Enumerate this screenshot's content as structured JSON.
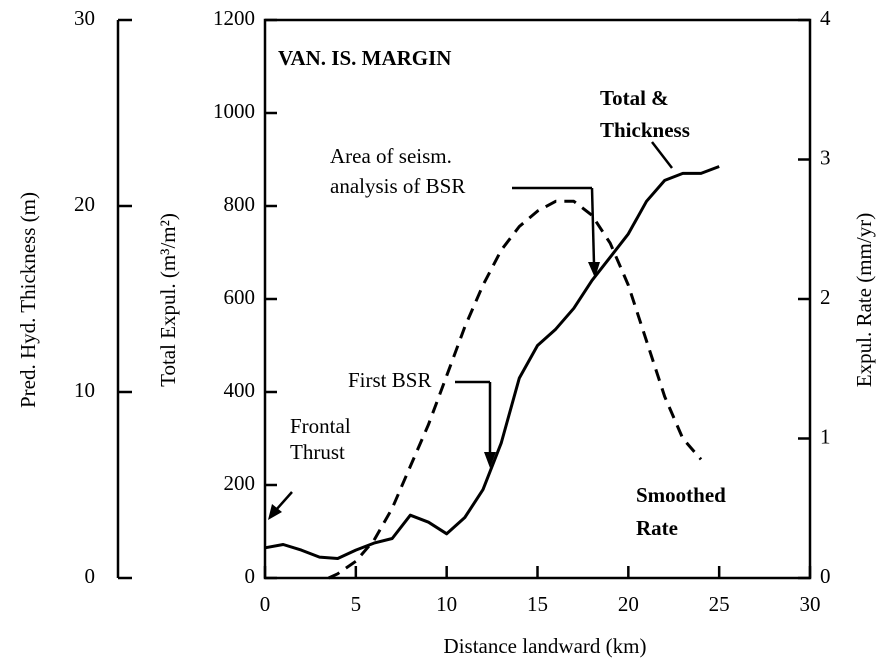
{
  "chart_data": {
    "type": "line",
    "xlabel": "Distance landward (km)",
    "ylabel": "Total Expul. (m³/m²)",
    "y2label": "Expul. Rate (mm/yr)",
    "xlim": [
      0,
      30
    ],
    "xticks": [
      0,
      5,
      10,
      15,
      20,
      25,
      30
    ],
    "ylim": [
      0,
      1200
    ],
    "yticks": [
      0,
      200,
      400,
      600,
      800,
      1000,
      1200
    ],
    "y2lim": [
      0,
      4
    ],
    "y2ticks": [
      0,
      1,
      2,
      3,
      4
    ],
    "left_axis": {
      "label": "Pred. Hyd. Thickness (m)",
      "lim": [
        0,
        30
      ],
      "ticks": [
        0,
        10,
        20,
        30
      ]
    },
    "series": [
      {
        "name": "Total & Thickness",
        "color": "#000000",
        "dash": "none",
        "x": [
          0,
          1,
          2,
          3,
          4,
          5,
          6,
          7,
          8,
          9,
          10,
          11,
          12,
          13,
          14,
          15,
          16,
          17,
          18,
          19,
          20,
          21,
          22,
          23,
          24,
          25
        ],
        "values": [
          65,
          72,
          60,
          45,
          42,
          60,
          75,
          85,
          135,
          120,
          95,
          130,
          190,
          290,
          430,
          500,
          535,
          580,
          640,
          690,
          740,
          810,
          855,
          870,
          870,
          885
        ]
      },
      {
        "name": "Smoothed Rate",
        "color": "#000000",
        "dash": "12 8",
        "axis": "y2",
        "x": [
          3.5,
          4,
          5,
          6,
          7,
          8,
          9,
          10,
          11,
          12,
          13,
          14,
          15,
          16,
          17,
          18,
          19,
          20,
          21,
          22,
          23,
          24
        ],
        "values": [
          0,
          0.03,
          0.12,
          0.27,
          0.5,
          0.8,
          1.1,
          1.45,
          1.8,
          2.1,
          2.35,
          2.52,
          2.63,
          2.7,
          2.7,
          2.6,
          2.4,
          2.1,
          1.7,
          1.3,
          1.0,
          0.85
        ]
      }
    ],
    "annotations": [
      {
        "text": [
          "VAN. IS. MARGIN"
        ]
      },
      {
        "text": [
          "Total &",
          "Thickness"
        ]
      },
      {
        "text": [
          "Area of seism.",
          "analysis of BSR"
        ]
      },
      {
        "text": [
          "First BSR"
        ]
      },
      {
        "text": [
          "Frontal",
          "Thrust"
        ]
      },
      {
        "text": [
          "Smoothed",
          "Rate"
        ]
      }
    ]
  }
}
